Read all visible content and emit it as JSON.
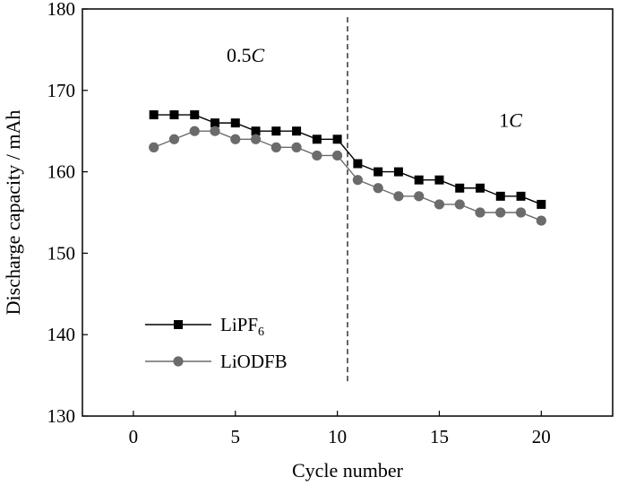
{
  "chart_data": {
    "type": "line",
    "xlabel": "Cycle number",
    "ylabel": "Discharge capacity / mAh",
    "xlim": [
      -2.5,
      23.5
    ],
    "ylim": [
      130,
      180
    ],
    "xticks": [
      0,
      5,
      10,
      15,
      20
    ],
    "yticks": [
      130,
      140,
      150,
      160,
      170,
      180
    ],
    "grid": false,
    "legend_position": "bottom-left",
    "x": [
      1,
      2,
      3,
      4,
      5,
      6,
      7,
      8,
      9,
      10,
      11,
      12,
      13,
      14,
      15,
      16,
      17,
      18,
      19,
      20
    ],
    "series": [
      {
        "name": "LiPF",
        "name_subscript": "6",
        "marker": "square",
        "color": "#000000",
        "values": [
          167,
          167,
          167,
          166,
          166,
          165,
          165,
          165,
          164,
          164,
          161,
          160,
          160,
          159,
          159,
          158,
          158,
          157,
          157,
          156
        ]
      },
      {
        "name": "LiODFB",
        "marker": "circle",
        "color": "#6b6b6b",
        "values": [
          163,
          164,
          165,
          165,
          164,
          164,
          163,
          163,
          162,
          162,
          159,
          158,
          157,
          157,
          156,
          156,
          155,
          155,
          155,
          154
        ]
      }
    ],
    "divider": {
      "x": 10.5,
      "y_from": 134,
      "y_to": 179
    },
    "annotations": [
      {
        "text": "0.5",
        "italic_suffix": "C",
        "x": 5.5,
        "y": 173.5
      },
      {
        "text": "1",
        "italic_suffix": "C",
        "x": 18.5,
        "y": 165.5
      }
    ]
  }
}
